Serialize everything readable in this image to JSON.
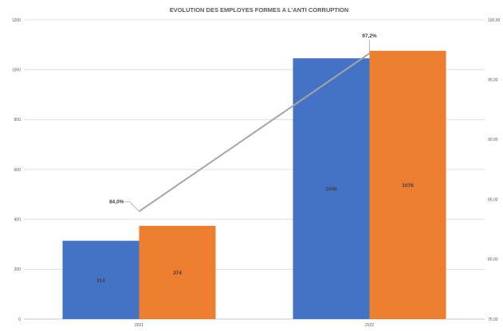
{
  "chart_data": {
    "type": "bar",
    "title": "EVOLUTION DES EMPLOYES FORMES A L'ANTI CORRUPTION",
    "categories": [
      "2021",
      "2022"
    ],
    "series": [
      {
        "values": [
          314,
          1046
        ],
        "color": "#4472C4"
      },
      {
        "values": [
          374,
          1076
        ],
        "color": "#ED7D31"
      }
    ],
    "line_series": {
      "type": "line",
      "axis": "secondary",
      "values": [
        84.0,
        97.2
      ],
      "labels": [
        "84,0%",
        "97,2%"
      ],
      "color": "#A5A5A5"
    },
    "ylim": [
      0,
      1200
    ],
    "y_ticks": [
      "0",
      "200",
      "400",
      "600",
      "800",
      "1000",
      "1200"
    ],
    "y2lim": [
      75,
      100
    ],
    "y2_ticks": [
      "75,00",
      "80,00",
      "85,00",
      "90,00",
      "95,00",
      "100,00"
    ],
    "grid": true,
    "legend": "none"
  }
}
